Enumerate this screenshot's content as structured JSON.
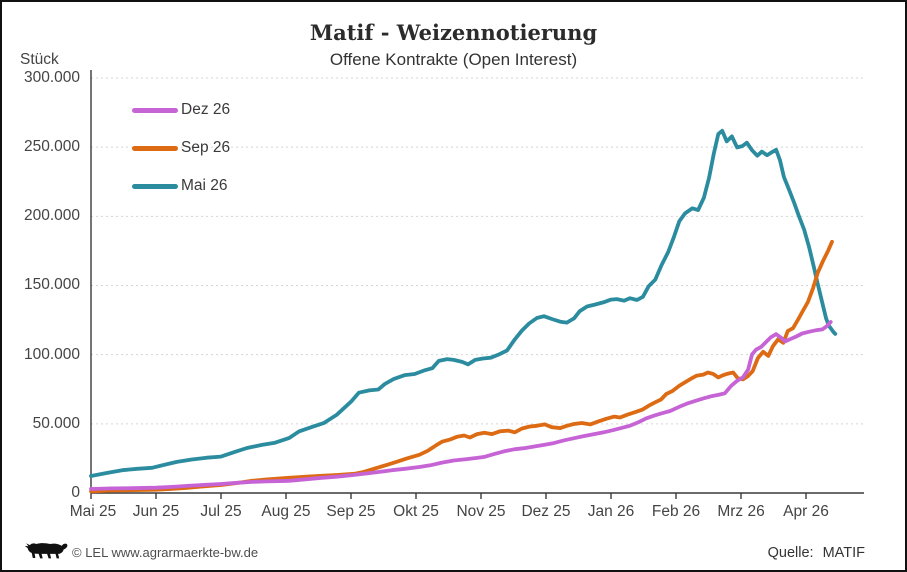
{
  "header": {
    "title": "Matif - Weizennotierung",
    "subtitle": "Offene Kontrakte (Open Interest)"
  },
  "footer": {
    "logo_icon": "bw-lion-logo",
    "copyright": "© LEL www.agrarmaerkte-bw.de",
    "source_label": "Quelle:",
    "source_value": "MATIF"
  },
  "chart_data": {
    "type": "line",
    "title": "Matif - Weizennotierung",
    "subtitle": "Offene Kontrakte (Open Interest)",
    "ylabel": "Stück",
    "ylim": [
      0,
      300000
    ],
    "ytick_step": 50000,
    "ytick_labels": [
      "0",
      "50.000",
      "100.000",
      "150.000",
      "200.000",
      "250.000",
      "300.000"
    ],
    "x_categories": [
      "Mai 25",
      "Jun 25",
      "Jul 25",
      "Aug 25",
      "Sep 25",
      "Okt 25",
      "Nov 25",
      "Dez 25",
      "Jan 26",
      "Feb 26",
      "Mrz 26",
      "Apr 26"
    ],
    "grid": "horizontal-dotted",
    "legend_position": "top-left-inside",
    "series": [
      {
        "name": "Dez 26",
        "color": "#C664D6",
        "points": [
          [
            0,
            2900
          ],
          [
            0.32,
            3300
          ],
          [
            0.63,
            3500
          ],
          [
            1,
            3800
          ],
          [
            1.25,
            4400
          ],
          [
            1.48,
            5100
          ],
          [
            1.71,
            5800
          ],
          [
            2,
            6500
          ],
          [
            2.25,
            7400
          ],
          [
            2.48,
            8000
          ],
          [
            2.71,
            8400
          ],
          [
            3.05,
            8800
          ],
          [
            3.32,
            10000
          ],
          [
            3.55,
            11000
          ],
          [
            3.78,
            11800
          ],
          [
            4.05,
            13100
          ],
          [
            4.25,
            14200
          ],
          [
            4.45,
            15300
          ],
          [
            4.63,
            16500
          ],
          [
            4.83,
            17500
          ],
          [
            5.05,
            18800
          ],
          [
            5.22,
            20000
          ],
          [
            5.4,
            22000
          ],
          [
            5.58,
            23500
          ],
          [
            5.78,
            24500
          ],
          [
            5.94,
            25400
          ],
          [
            6.05,
            26100
          ],
          [
            6.2,
            28100
          ],
          [
            6.35,
            30100
          ],
          [
            6.51,
            31600
          ],
          [
            6.66,
            32400
          ],
          [
            6.82,
            33600
          ],
          [
            6.97,
            34800
          ],
          [
            7.12,
            36100
          ],
          [
            7.28,
            38100
          ],
          [
            7.43,
            39600
          ],
          [
            7.58,
            41100
          ],
          [
            7.74,
            42600
          ],
          [
            7.89,
            43900
          ],
          [
            8.05,
            45700
          ],
          [
            8.17,
            47100
          ],
          [
            8.29,
            48600
          ],
          [
            8.42,
            51100
          ],
          [
            8.54,
            53900
          ],
          [
            8.66,
            55900
          ],
          [
            8.78,
            57600
          ],
          [
            8.91,
            59300
          ],
          [
            9.05,
            62300
          ],
          [
            9.17,
            64600
          ],
          [
            9.29,
            66400
          ],
          [
            9.42,
            68400
          ],
          [
            9.54,
            69900
          ],
          [
            9.65,
            70900
          ],
          [
            9.75,
            72100
          ],
          [
            9.85,
            77600
          ],
          [
            9.94,
            81100
          ],
          [
            10.03,
            83600
          ],
          [
            10.11,
            89100
          ],
          [
            10.17,
            100100
          ],
          [
            10.23,
            103600
          ],
          [
            10.31,
            105600
          ],
          [
            10.38,
            108900
          ],
          [
            10.46,
            112600
          ],
          [
            10.54,
            114900
          ],
          [
            10.62,
            112100
          ],
          [
            10.68,
            109600
          ],
          [
            10.75,
            111100
          ],
          [
            10.85,
            113100
          ],
          [
            10.94,
            115300
          ],
          [
            11.05,
            116600
          ],
          [
            11.15,
            117600
          ],
          [
            11.25,
            118300
          ],
          [
            11.32,
            120600
          ],
          [
            11.38,
            123600
          ]
        ]
      },
      {
        "name": "Sep 26",
        "color": "#DC6B14",
        "points": [
          [
            0,
            1200
          ],
          [
            0.32,
            1800
          ],
          [
            0.63,
            2100
          ],
          [
            1,
            2400
          ],
          [
            1.25,
            3000
          ],
          [
            1.48,
            3700
          ],
          [
            1.71,
            4700
          ],
          [
            2,
            5800
          ],
          [
            2.25,
            7200
          ],
          [
            2.48,
            8800
          ],
          [
            2.71,
            9800
          ],
          [
            3.05,
            11000
          ],
          [
            3.32,
            11800
          ],
          [
            3.55,
            12400
          ],
          [
            3.78,
            13000
          ],
          [
            4.05,
            13900
          ],
          [
            4.2,
            15300
          ],
          [
            4.35,
            17500
          ],
          [
            4.55,
            20300
          ],
          [
            4.71,
            22600
          ],
          [
            4.86,
            25000
          ],
          [
            5.05,
            27600
          ],
          [
            5.18,
            30500
          ],
          [
            5.31,
            34500
          ],
          [
            5.4,
            37100
          ],
          [
            5.52,
            38600
          ],
          [
            5.63,
            40600
          ],
          [
            5.74,
            41600
          ],
          [
            5.83,
            40100
          ],
          [
            5.94,
            42600
          ],
          [
            6.05,
            43600
          ],
          [
            6.17,
            42600
          ],
          [
            6.29,
            44600
          ],
          [
            6.42,
            45100
          ],
          [
            6.52,
            43900
          ],
          [
            6.63,
            46600
          ],
          [
            6.75,
            48100
          ],
          [
            6.86,
            48600
          ],
          [
            6.98,
            49600
          ],
          [
            7.09,
            47600
          ],
          [
            7.22,
            46900
          ],
          [
            7.32,
            48600
          ],
          [
            7.43,
            49900
          ],
          [
            7.55,
            50600
          ],
          [
            7.68,
            49600
          ],
          [
            7.8,
            51600
          ],
          [
            7.92,
            53600
          ],
          [
            8.05,
            55200
          ],
          [
            8.14,
            54600
          ],
          [
            8.25,
            56600
          ],
          [
            8.35,
            58100
          ],
          [
            8.48,
            60200
          ],
          [
            8.58,
            63100
          ],
          [
            8.68,
            65600
          ],
          [
            8.77,
            67600
          ],
          [
            8.85,
            71600
          ],
          [
            8.94,
            73600
          ],
          [
            9.05,
            77600
          ],
          [
            9.14,
            80100
          ],
          [
            9.23,
            82600
          ],
          [
            9.32,
            84900
          ],
          [
            9.42,
            85600
          ],
          [
            9.49,
            87100
          ],
          [
            9.57,
            86100
          ],
          [
            9.65,
            83600
          ],
          [
            9.72,
            85100
          ],
          [
            9.8,
            86300
          ],
          [
            9.88,
            87100
          ],
          [
            9.95,
            82900
          ],
          [
            10.03,
            82100
          ],
          [
            10.11,
            84600
          ],
          [
            10.18,
            88100
          ],
          [
            10.26,
            97600
          ],
          [
            10.34,
            102100
          ],
          [
            10.42,
            99100
          ],
          [
            10.49,
            106100
          ],
          [
            10.57,
            111100
          ],
          [
            10.65,
            108600
          ],
          [
            10.72,
            117100
          ],
          [
            10.8,
            119100
          ],
          [
            10.88,
            125600
          ],
          [
            10.95,
            131600
          ],
          [
            11.03,
            138100
          ],
          [
            11.11,
            148100
          ],
          [
            11.18,
            159100
          ],
          [
            11.26,
            167600
          ],
          [
            11.34,
            175100
          ],
          [
            11.4,
            181600
          ]
        ]
      },
      {
        "name": "Mai 26",
        "color": "#2C8C9F",
        "points": [
          [
            0,
            12300
          ],
          [
            0.25,
            14500
          ],
          [
            0.48,
            16500
          ],
          [
            0.71,
            17500
          ],
          [
            0.94,
            18200
          ],
          [
            1.14,
            20500
          ],
          [
            1.32,
            22500
          ],
          [
            1.55,
            24200
          ],
          [
            1.78,
            25500
          ],
          [
            2,
            26300
          ],
          [
            2.2,
            29500
          ],
          [
            2.4,
            32500
          ],
          [
            2.63,
            34800
          ],
          [
            2.82,
            36200
          ],
          [
            3.05,
            39800
          ],
          [
            3.2,
            44500
          ],
          [
            3.4,
            47800
          ],
          [
            3.58,
            50500
          ],
          [
            3.78,
            56500
          ],
          [
            4,
            66000
          ],
          [
            4.12,
            72500
          ],
          [
            4.28,
            74200
          ],
          [
            4.42,
            74800
          ],
          [
            4.52,
            78800
          ],
          [
            4.66,
            82500
          ],
          [
            4.83,
            85200
          ],
          [
            4.98,
            86000
          ],
          [
            5.12,
            88500
          ],
          [
            5.25,
            90200
          ],
          [
            5.35,
            95500
          ],
          [
            5.48,
            96800
          ],
          [
            5.58,
            96200
          ],
          [
            5.71,
            94800
          ],
          [
            5.8,
            93000
          ],
          [
            5.91,
            96200
          ],
          [
            6.03,
            97200
          ],
          [
            6.15,
            97800
          ],
          [
            6.26,
            99800
          ],
          [
            6.4,
            103000
          ],
          [
            6.52,
            111000
          ],
          [
            6.63,
            117500
          ],
          [
            6.74,
            122500
          ],
          [
            6.86,
            126500
          ],
          [
            6.97,
            127800
          ],
          [
            7.09,
            125800
          ],
          [
            7.22,
            123800
          ],
          [
            7.32,
            123200
          ],
          [
            7.43,
            126200
          ],
          [
            7.52,
            131500
          ],
          [
            7.63,
            134800
          ],
          [
            7.75,
            136200
          ],
          [
            7.88,
            137800
          ],
          [
            8,
            139800
          ],
          [
            8.09,
            140200
          ],
          [
            8.2,
            139000
          ],
          [
            8.29,
            140800
          ],
          [
            8.4,
            139500
          ],
          [
            8.49,
            141800
          ],
          [
            8.58,
            149500
          ],
          [
            8.68,
            154200
          ],
          [
            8.78,
            165000
          ],
          [
            8.88,
            174200
          ],
          [
            8.97,
            185500
          ],
          [
            9.05,
            196500
          ],
          [
            9.14,
            202200
          ],
          [
            9.25,
            205800
          ],
          [
            9.34,
            204500
          ],
          [
            9.43,
            213500
          ],
          [
            9.51,
            228000
          ],
          [
            9.58,
            245000
          ],
          [
            9.65,
            259500
          ],
          [
            9.71,
            261800
          ],
          [
            9.78,
            254200
          ],
          [
            9.86,
            257800
          ],
          [
            9.94,
            249800
          ],
          [
            10.02,
            250800
          ],
          [
            10.09,
            253200
          ],
          [
            10.17,
            247800
          ],
          [
            10.25,
            243800
          ],
          [
            10.32,
            246800
          ],
          [
            10.4,
            244200
          ],
          [
            10.48,
            246500
          ],
          [
            10.54,
            248200
          ],
          [
            10.6,
            240500
          ],
          [
            10.66,
            228500
          ],
          [
            10.74,
            219200
          ],
          [
            10.82,
            209500
          ],
          [
            10.89,
            200200
          ],
          [
            10.97,
            190500
          ],
          [
            11.05,
            177200
          ],
          [
            11.12,
            163500
          ],
          [
            11.18,
            151200
          ],
          [
            11.25,
            137500
          ],
          [
            11.31,
            126200
          ],
          [
            11.35,
            121000
          ],
          [
            11.42,
            116500
          ],
          [
            11.45,
            115000
          ]
        ]
      }
    ]
  }
}
